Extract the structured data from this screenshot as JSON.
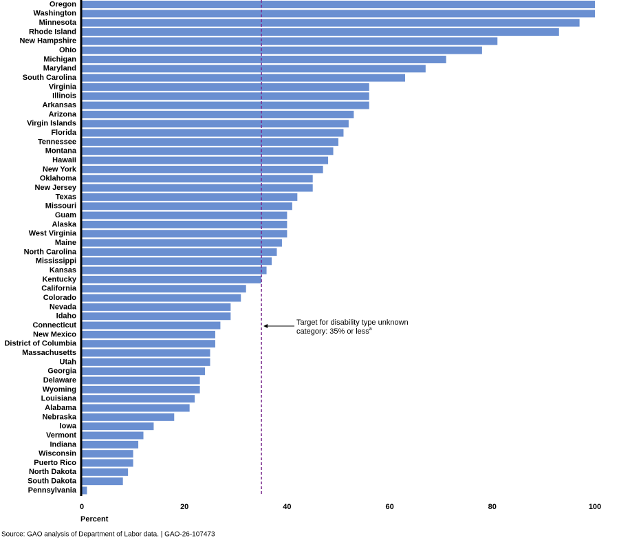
{
  "chart_data": {
    "type": "hbar",
    "categories": [
      "Oregon",
      "Washington",
      "Minnesota",
      "Rhode Island",
      "New Hampshire",
      "Ohio",
      "Michigan",
      "Maryland",
      "South Carolina",
      "Virginia",
      "Illinois",
      "Arkansas",
      "Arizona",
      "Virgin Islands",
      "Florida",
      "Tennessee",
      "Montana",
      "Hawaii",
      "New York",
      "Oklahoma",
      "New Jersey",
      "Texas",
      "Missouri",
      "Guam",
      "Alaska",
      "West Virginia",
      "Maine",
      "North Carolina",
      "Mississippi",
      "Kansas",
      "Kentucky",
      "California",
      "Colorado",
      "Nevada",
      "Idaho",
      "Connecticut",
      "New Mexico",
      "District of Columbia",
      "Massachusetts",
      "Utah",
      "Georgia",
      "Delaware",
      "Wyoming",
      "Louisiana",
      "Alabama",
      "Nebraska",
      "Iowa",
      "Vermont",
      "Indiana",
      "Wisconsin",
      "Puerto Rico",
      "North Dakota",
      "South Dakota",
      "Pennsylvania"
    ],
    "values": [
      100,
      100,
      97,
      93,
      81,
      78,
      71,
      67,
      63,
      56,
      56,
      56,
      53,
      52,
      51,
      50,
      49,
      48,
      47,
      45,
      45,
      42,
      41,
      40,
      40,
      40,
      39,
      38,
      37,
      36,
      35,
      32,
      31,
      29,
      29,
      27,
      26,
      26,
      25,
      25,
      24,
      23,
      23,
      22,
      21,
      18,
      14,
      12,
      11,
      10,
      10,
      9,
      8,
      1
    ],
    "color": "#6a8fd1",
    "xlim": [
      0,
      100
    ],
    "xticks": [
      0,
      20,
      40,
      60,
      80,
      100
    ],
    "xlabel": "Percent",
    "reference_line": {
      "value": 35,
      "color": "#7b2d8e"
    },
    "annotation": {
      "lines": [
        "Target for disability type unknown",
        "category: 35% or less"
      ],
      "superscript": "a"
    },
    "source": "Source: GAO analysis of Department of Labor data.  |  GAO-26-107473"
  }
}
